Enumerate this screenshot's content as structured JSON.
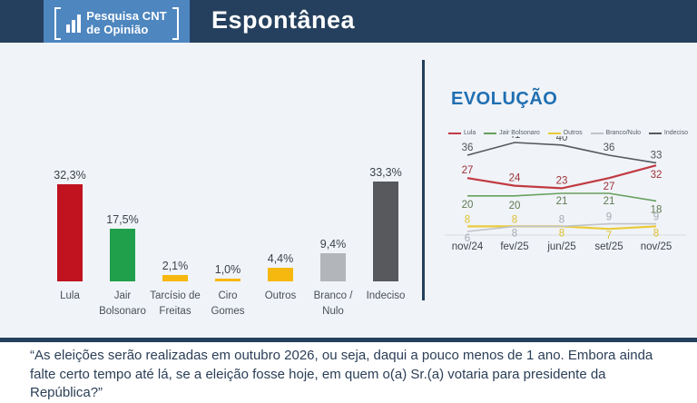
{
  "header": {
    "logo_line1": "Pesquisa CNT",
    "logo_line2": "de Opinião",
    "title": "Espontânea"
  },
  "evolution_title": "EVOLUÇÃO",
  "quote": "“As eleições serão realizadas em outubro 2026, ou seja, daqui a pouco menos de 1 ano. Embora ainda falte certo tempo até lá, se a eleição fosse hoje, em quem o(a) Sr.(a) votaria para presidente da República?”",
  "colors": {
    "header_bg": "#25405e",
    "logo_bg": "#4e86bf",
    "main_bg": "#f0f3f8",
    "evolution_title": "#1f6fb2",
    "divider": "#24405e",
    "quote_text": "#2b3e57"
  },
  "chart_data": [
    {
      "type": "bar",
      "title": "Espontânea",
      "categories": [
        "Lula",
        "Jair Bolsonaro",
        "Tarcísio de Freitas",
        "Ciro Gomes",
        "Outros",
        "Branco / Nulo",
        "Indeciso"
      ],
      "values": [
        32.3,
        17.5,
        2.1,
        1.0,
        4.4,
        9.4,
        33.3
      ],
      "value_labels": [
        "32,3%",
        "17,5%",
        "2,1%",
        "1,0%",
        "4,4%",
        "9,4%",
        "33,3%"
      ],
      "bar_colors": [
        "#c0121f",
        "#21a04b",
        "#f6b80e",
        "#f6b80e",
        "#f6b80e",
        "#b2b6ba",
        "#57595c"
      ],
      "unit": "%",
      "ylim": [
        0,
        35
      ],
      "grid": false
    },
    {
      "type": "line",
      "title": "EVOLUÇÃO",
      "x": [
        "nov/24",
        "fev/25",
        "jun/25",
        "set/25",
        "nov/25"
      ],
      "series": [
        {
          "name": "Lula",
          "values": [
            27,
            24,
            23,
            27,
            32
          ],
          "color": "#c13a42",
          "label_color": "#9c3136"
        },
        {
          "name": "Jair Bolsonaro",
          "values": [
            20,
            20,
            21,
            21,
            18
          ],
          "color": "#67a05e",
          "label_color": "#5e7a52"
        },
        {
          "name": "Outros",
          "values": [
            8,
            8,
            8,
            7,
            8
          ],
          "color": "#e9cb3a",
          "label_color": "#dfc02c"
        },
        {
          "name": "Branco/Nulo",
          "values": [
            6,
            8,
            8,
            9,
            9
          ],
          "color": "#c0c4c8",
          "label_color": "#a6abb1"
        },
        {
          "name": "Indeciso",
          "values": [
            36,
            41,
            40,
            36,
            33
          ],
          "color": "#55585c",
          "label_color": "#515459"
        }
      ],
      "ylim": [
        0,
        45
      ],
      "legend_position": "top",
      "grid": false
    }
  ]
}
